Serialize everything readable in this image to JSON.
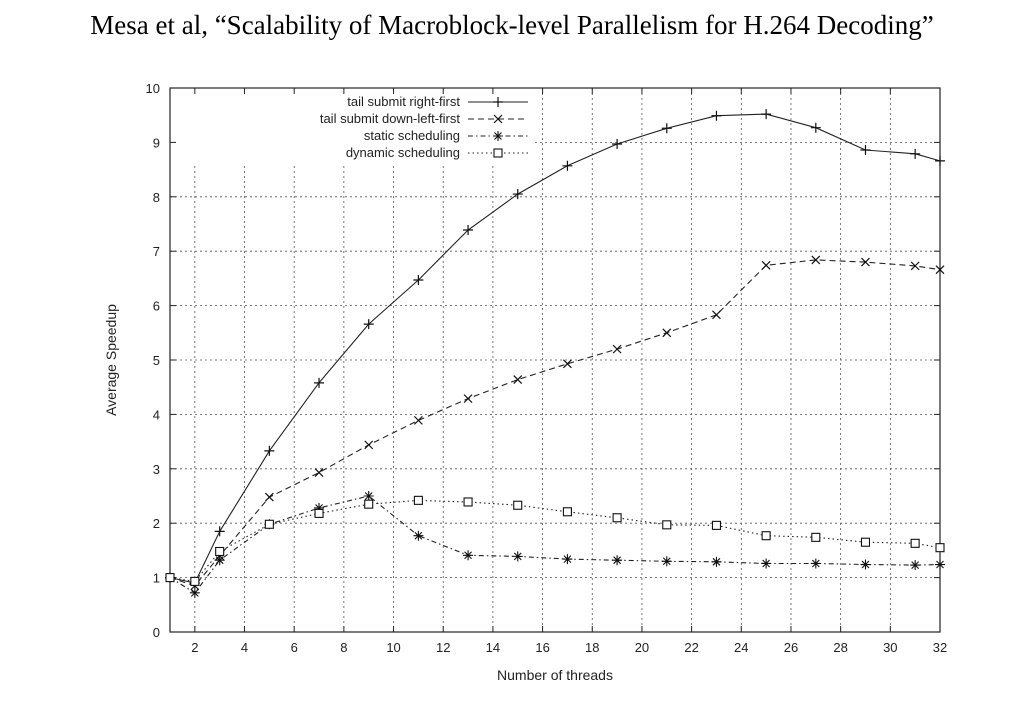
{
  "caption": "Mesa et al, “Scalability of Macroblock-level Parallelism for H.264 Decoding”",
  "chart_data": {
    "type": "line",
    "title": "",
    "xlabel": "Number of threads",
    "ylabel": "Average Speedup",
    "xlim": [
      1,
      32
    ],
    "ylim": [
      0,
      10
    ],
    "xticks": [
      2,
      4,
      6,
      8,
      10,
      12,
      14,
      16,
      18,
      20,
      22,
      24,
      26,
      28,
      30,
      32
    ],
    "yticks": [
      0,
      1,
      2,
      3,
      4,
      5,
      6,
      7,
      8,
      9,
      10
    ],
    "grid": true,
    "legend_position": "top-left",
    "series": [
      {
        "name": "tail submit right-first",
        "marker": "plus",
        "dash": "solid",
        "x": [
          1,
          2,
          3,
          5,
          7,
          9,
          11,
          13,
          15,
          17,
          19,
          21,
          23,
          25,
          27,
          29,
          31,
          32
        ],
        "y": [
          1.0,
          0.9,
          1.85,
          3.33,
          4.58,
          5.66,
          6.47,
          7.39,
          8.05,
          8.57,
          8.97,
          9.26,
          9.49,
          9.52,
          9.27,
          8.86,
          8.79,
          8.66
        ]
      },
      {
        "name": "tail submit down-left-first",
        "marker": "x",
        "dash": "dashed",
        "x": [
          1,
          2,
          3,
          5,
          7,
          9,
          11,
          13,
          15,
          17,
          19,
          21,
          23,
          25,
          27,
          29,
          31,
          32
        ],
        "y": [
          1.0,
          0.85,
          1.4,
          2.48,
          2.93,
          3.44,
          3.89,
          4.29,
          4.64,
          4.93,
          5.2,
          5.5,
          5.83,
          6.74,
          6.84,
          6.8,
          6.73,
          6.66
        ]
      },
      {
        "name": "static scheduling",
        "marker": "star",
        "dash": "dashdot",
        "x": [
          1,
          2,
          3,
          5,
          7,
          9,
          11,
          13,
          15,
          17,
          19,
          21,
          23,
          25,
          27,
          29,
          31,
          32
        ],
        "y": [
          1.0,
          0.72,
          1.32,
          1.98,
          2.28,
          2.5,
          1.77,
          1.41,
          1.39,
          1.34,
          1.32,
          1.3,
          1.29,
          1.26,
          1.26,
          1.24,
          1.23,
          1.24
        ]
      },
      {
        "name": "dynamic scheduling",
        "marker": "square",
        "dash": "dotted",
        "x": [
          1,
          2,
          3,
          5,
          7,
          9,
          11,
          13,
          15,
          17,
          19,
          21,
          23,
          25,
          27,
          29,
          31,
          32
        ],
        "y": [
          1.0,
          0.93,
          1.48,
          1.98,
          2.18,
          2.35,
          2.42,
          2.39,
          2.33,
          2.21,
          2.1,
          1.97,
          1.96,
          1.77,
          1.74,
          1.65,
          1.63,
          1.55
        ]
      }
    ]
  }
}
